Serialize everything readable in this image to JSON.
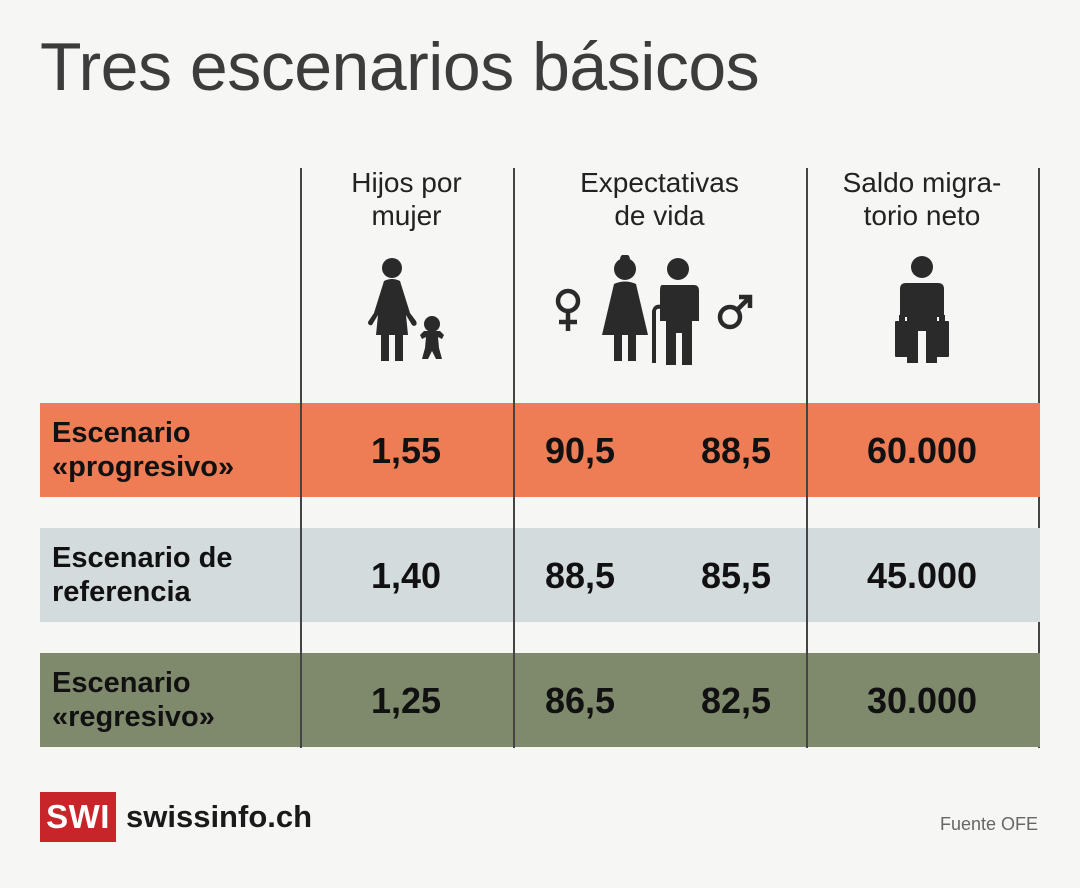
{
  "title": "Tres escenarios básicos",
  "columns": [
    {
      "line1": "Hijos por",
      "line2": "mujer",
      "icon": "mother-child-icon"
    },
    {
      "line1": "Expectativas",
      "line2": "de vida",
      "icon": "elderly-couple-icon"
    },
    {
      "line1": "Saldo migra-",
      "line2": "torio neto",
      "icon": "traveler-luggage-icon"
    }
  ],
  "colors": {
    "progresivo": "#ee7d56",
    "referencia": "#d4dbdc",
    "regresivo": "#7f8a6c",
    "icon": "#2a2a2a",
    "logo": "#c8252b"
  },
  "chart_data": {
    "type": "table",
    "title": "Tres escenarios básicos",
    "headers": [
      "Hijos por mujer",
      "Expectativas de vida (mujer)",
      "Expectativas de vida (hombre)",
      "Saldo migratorio neto"
    ],
    "rows": [
      {
        "line1": "Escenario",
        "line2": "«progresivo»",
        "hijos": "1,55",
        "vida_mujer": "90,5",
        "vida_hombre": "88,5",
        "saldo": "60.000"
      },
      {
        "line1": "Escenario de",
        "line2": "referencia",
        "hijos": "1,40",
        "vida_mujer": "88,5",
        "vida_hombre": "85,5",
        "saldo": "45.000"
      },
      {
        "line1": "Escenario",
        "line2": "«regresivo»",
        "hijos": "1,25",
        "vida_mujer": "86,5",
        "vida_hombre": "82,5",
        "saldo": "30.000"
      }
    ]
  },
  "footer": {
    "logo": "SWI",
    "brand": "swissinfo.ch",
    "source": "Fuente OFE"
  }
}
